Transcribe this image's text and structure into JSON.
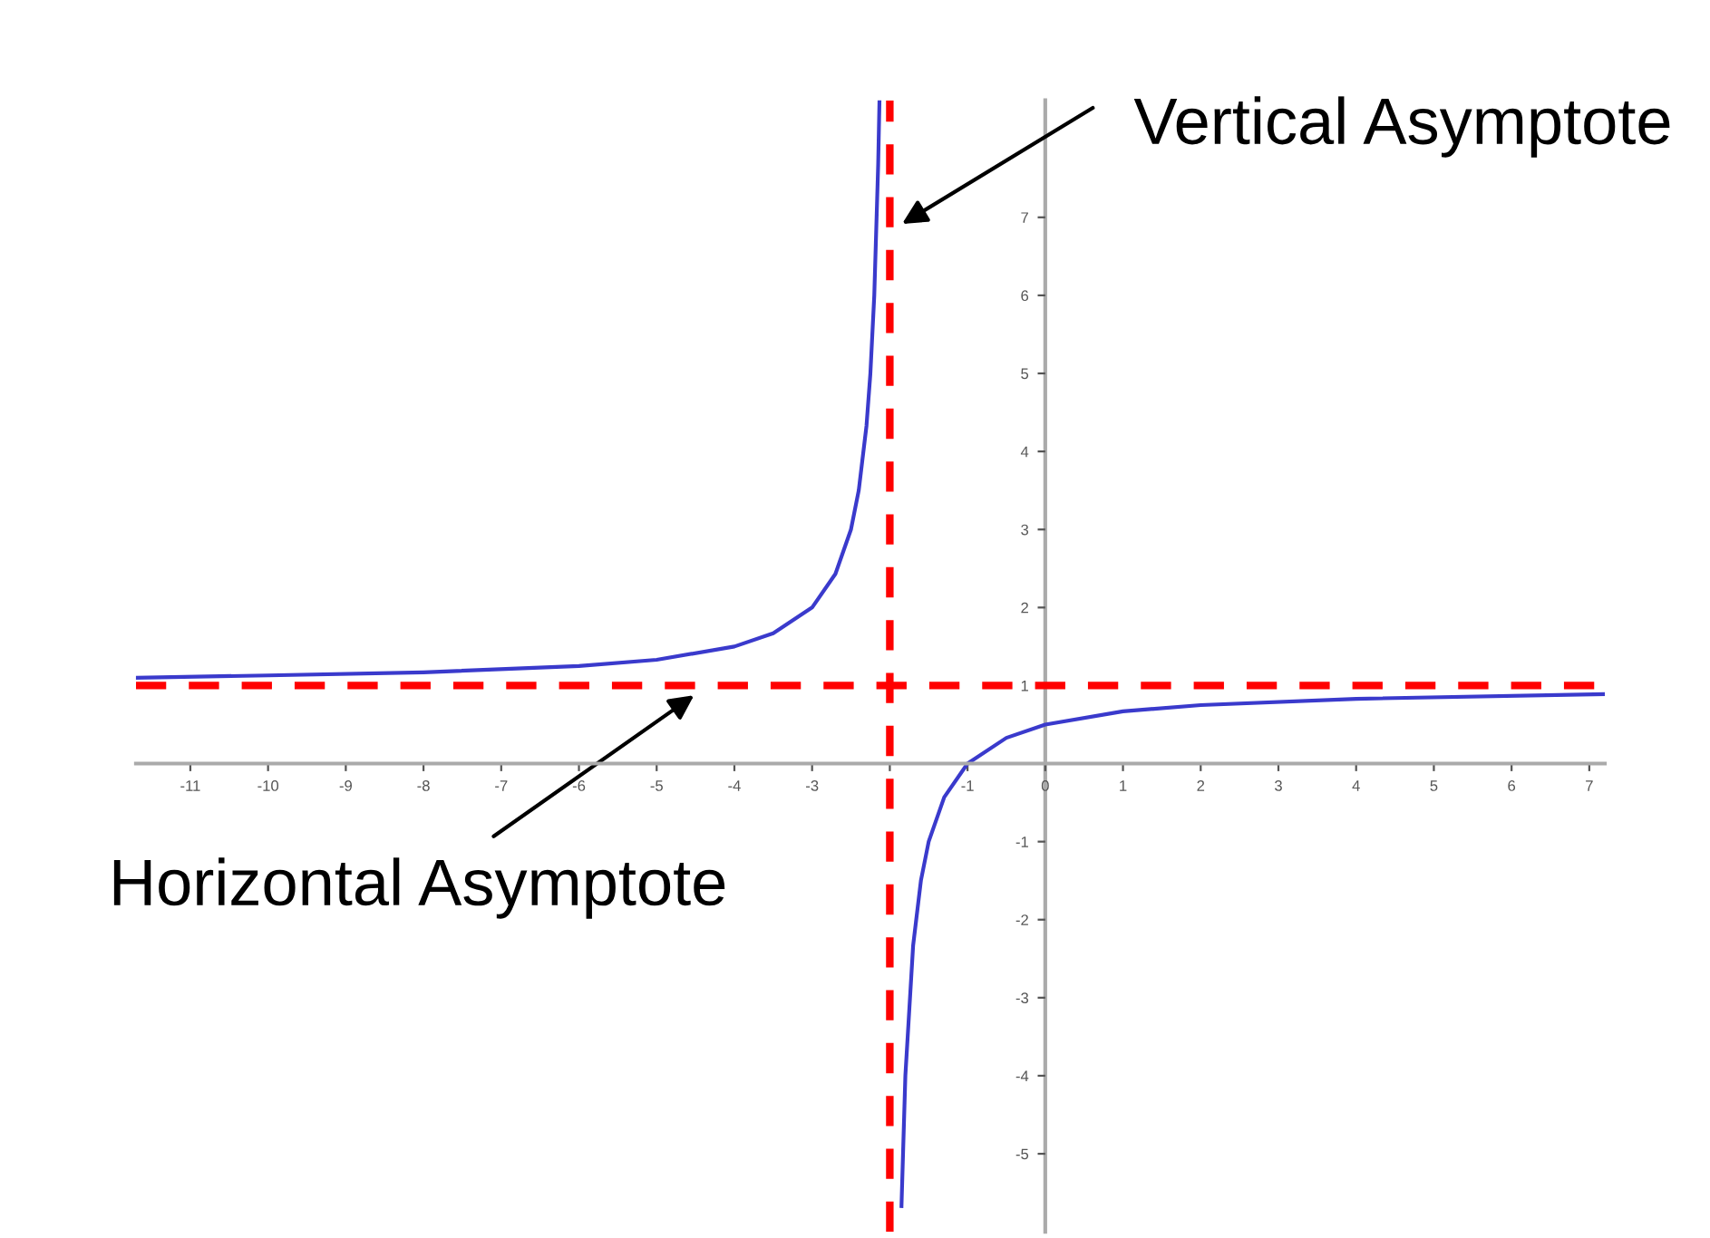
{
  "chart_data": {
    "type": "line",
    "series": [
      {
        "color": "#3a3acc",
        "x": [
          -11.7,
          -10,
          -8,
          -6,
          -5,
          -4,
          -3.5,
          -3,
          -2.7,
          -2.5,
          -2.4,
          -2.3,
          -2.25,
          -2.2,
          -2.15,
          -2.133
        ],
        "values": [
          1.1,
          1.13,
          1.17,
          1.25,
          1.33,
          1.5,
          1.67,
          2,
          2.43,
          3,
          3.5,
          4.33,
          5,
          6,
          7.67,
          8.5
        ]
      },
      {
        "color": "#3a3acc",
        "x": [
          -1.85,
          -1.8,
          -1.7,
          -1.6,
          -1.5,
          -1.3,
          -1,
          -0.5,
          0,
          1,
          2,
          4,
          7.2
        ],
        "values": [
          -5.67,
          -4,
          -2.33,
          -1.5,
          -1,
          -0.43,
          0,
          0.33,
          0.5,
          0.67,
          0.75,
          0.83,
          0.89
        ]
      }
    ],
    "xlim": [
      -11.7,
      7.2
    ],
    "ylim": [
      -6,
      8.5
    ],
    "xticks": [
      -11,
      -10,
      -9,
      -8,
      -7,
      -6,
      -5,
      -4,
      -3,
      {
        "value": -2,
        "label": null
      },
      -1,
      0,
      1,
      2,
      3,
      4,
      5,
      6,
      7
    ],
    "yticks": [
      -5,
      -4,
      -3,
      -2,
      -1,
      1,
      2,
      3,
      4,
      5,
      6,
      7
    ],
    "ref_lines": [
      {
        "axis": "x",
        "value": -2,
        "color": "#ff0000",
        "line_style": "dashed"
      },
      {
        "axis": "y",
        "value": 1,
        "color": "#ff0000",
        "line_style": "dashed"
      }
    ],
    "annotations": [
      "Vertical Asymptote",
      "Horizontal Asymptote"
    ],
    "grid": false,
    "legend": false
  }
}
